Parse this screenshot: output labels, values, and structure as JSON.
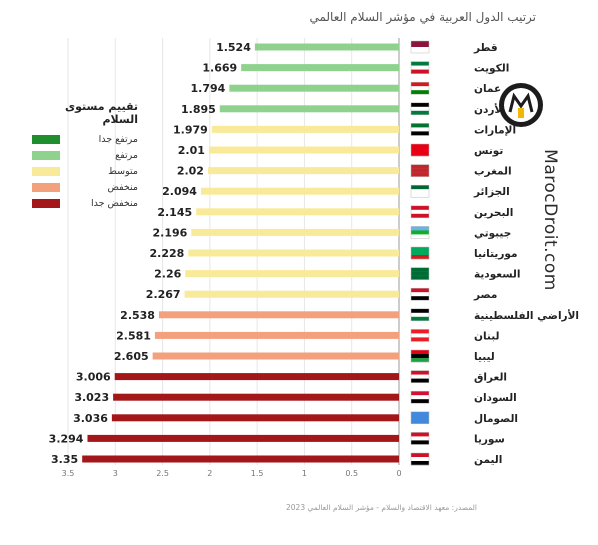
{
  "title": "ترتيب الدول العربية في مؤشر السلام العالمي",
  "source": "المصدر: معهد الاقتصاد والسلام - مؤشر السلام العالمي 2023",
  "watermark": "MarocDroit.com",
  "legend": {
    "title": "تقييم مستوى السلام",
    "items": [
      {
        "label": "مرتفع جدا",
        "color": "#1e8e2e"
      },
      {
        "label": "مرتفع",
        "color": "#8ed28e"
      },
      {
        "label": "متوسط",
        "color": "#f9ea9a"
      },
      {
        "label": "منخفض",
        "color": "#f3a07d"
      },
      {
        "label": "منخفض جدا",
        "color": "#a3161a"
      }
    ]
  },
  "chart_data": {
    "type": "bar",
    "orientation": "horizontal",
    "title": "ترتيب الدول العربية في مؤشر السلام العالمي",
    "categories": [
      "قطر",
      "الكويت",
      "عمان",
      "الأردن",
      "الإمارات",
      "تونس",
      "المغرب",
      "الجزائر",
      "البحرين",
      "جيبوتي",
      "موريتانيا",
      "السعودية",
      "مصر",
      "الأراضي الفلسطينية",
      "لبنان",
      "ليبيا",
      "العراق",
      "السودان",
      "الصومال",
      "سوريا",
      "اليمن"
    ],
    "values": [
      1.524,
      1.669,
      1.794,
      1.895,
      1.979,
      2.01,
      2.02,
      2.094,
      2.145,
      2.196,
      2.228,
      2.26,
      2.267,
      2.538,
      2.581,
      2.605,
      3.006,
      3.023,
      3.036,
      3.294,
      3.35
    ],
    "value_labels": [
      "1.524",
      "1.669",
      "1.794",
      "1.895",
      "1.979",
      "2.01",
      "2.02",
      "2.094",
      "2.145",
      "2.196",
      "2.228",
      "2.26",
      "2.267",
      "2.538",
      "2.581",
      "2.605",
      "3.006",
      "3.023",
      "3.036",
      "3.294",
      "3.35"
    ],
    "levels": [
      "high",
      "high",
      "high",
      "high",
      "medium",
      "medium",
      "medium",
      "medium",
      "medium",
      "medium",
      "medium",
      "medium",
      "medium",
      "low",
      "low",
      "low",
      "very-low",
      "very-low",
      "very-low",
      "very-low",
      "very-low"
    ],
    "level_colors": {
      "high": "#8ed28e",
      "medium": "#f9ea9a",
      "low": "#f3a07d",
      "very-low": "#a3161a"
    },
    "xlim": [
      0,
      3.5
    ],
    "x_reversed": true,
    "x_ticks": [
      3.5,
      3,
      2.5,
      2,
      1.5,
      1,
      0.5,
      0
    ],
    "x_tick_labels": [
      "3.5",
      "3",
      "2.5",
      "2",
      "1.5",
      "1",
      "0.5",
      "0"
    ],
    "grid": true,
    "legend_position": "left"
  }
}
